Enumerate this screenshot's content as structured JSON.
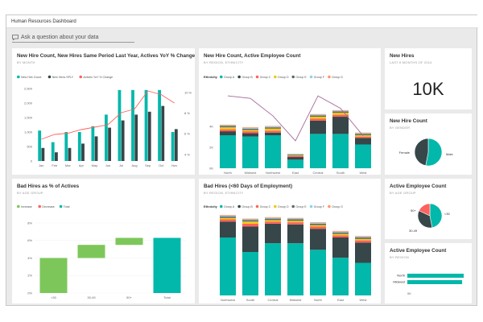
{
  "app": {
    "title": "Human Resources Dashboard"
  },
  "qa": {
    "placeholder": "Ask a question about your data"
  },
  "tiles": {
    "t1": {
      "title": "New Hire Count, New Hires Same Period Last Year, Actives YoY % Change",
      "subtitle": "BY MONTH"
    },
    "t2": {
      "title": "New Hire Count, Active Employee Count",
      "subtitle": "BY REGION, ETHNICITY"
    },
    "t3": {
      "title": "New Hires",
      "subtitle": "LAST 6 MONTHS OF 2014",
      "value": "10K"
    },
    "t4": {
      "title": "New Hire Count",
      "subtitle": "BY GENDER"
    },
    "t5": {
      "title": "Bad Hires as % of Actives",
      "subtitle": "BY AGE GROUP"
    },
    "t6": {
      "title": "Bad Hires (<60 Days of Employment)",
      "subtitle": "BY REGION, ETHNICITY"
    },
    "t7": {
      "title": "Active Employee Count",
      "subtitle": "BY AGE GROUP"
    },
    "t8": {
      "title": "Active Employee Count",
      "subtitle": "BY REGION"
    }
  },
  "colors": {
    "teal": "#01b8aa",
    "dark": "#374649",
    "red": "#fd625e",
    "yellow": "#f2c80f",
    "gray": "#5f6b6d",
    "blue": "#8ad4eb",
    "orange": "#fe9666",
    "purple": "#a66999",
    "green": "#7dc75a",
    "lightgray": "#e5e5e5"
  },
  "chart_data": [
    {
      "id": "t1",
      "type": "bar",
      "categories": [
        "Jan",
        "Feb",
        "Mar",
        "Apr",
        "May",
        "Jun",
        "Jul",
        "Aug",
        "Sep",
        "Oct",
        "Nov"
      ],
      "series": [
        {
          "name": "New Hire Count",
          "values": [
            1050,
            650,
            1000,
            1000,
            1200,
            1600,
            2450,
            2450,
            2450,
            2450,
            1000
          ]
        },
        {
          "name": "New Hires SPLY",
          "values": [
            450,
            300,
            450,
            600,
            850,
            1150,
            1400,
            1600,
            1700,
            1900,
            1100
          ]
        },
        {
          "name": "Actives YoY % Change",
          "values": [
            1.8,
            2.2,
            2.3,
            2.6,
            2.8,
            3.0,
            4.0,
            4.3,
            5.8,
            5.5,
            4.8
          ]
        }
      ],
      "ylim": [
        0,
        2500
      ],
      "yticks": [
        "0",
        "500",
        "1,000",
        "1,500",
        "2,000",
        "2,500"
      ],
      "y2lim": [
        0,
        6
      ],
      "y2ticks": [
        "4 %",
        "6 %",
        "8 %",
        "10 %"
      ]
    },
    {
      "id": "t2",
      "type": "bar",
      "legend_title": "Ethnicity",
      "categories": [
        "North",
        "Midwest",
        "Northwest",
        "East",
        "Central",
        "South",
        "West"
      ],
      "series": [
        {
          "name": "Group A",
          "values": [
            50,
            48,
            50,
            13,
            52,
            52,
            36
          ]
        },
        {
          "name": "Group B",
          "values": [
            6,
            5,
            4,
            4,
            20,
            26,
            10
          ]
        },
        {
          "name": "Group C",
          "values": [
            3,
            3,
            3,
            2,
            3,
            3,
            2
          ]
        },
        {
          "name": "Group D",
          "values": [
            3,
            2,
            3,
            1,
            3,
            3,
            2
          ]
        },
        {
          "name": "Group E",
          "values": [
            2,
            2,
            2,
            1,
            2,
            2,
            2
          ]
        },
        {
          "name": "Group F",
          "values": [
            1,
            1,
            1,
            1,
            1,
            1,
            1
          ]
        },
        {
          "name": "Group G",
          "values": [
            1,
            1,
            1,
            0,
            1,
            1,
            1
          ]
        }
      ],
      "line": {
        "name": "Active Employee Count",
        "values": [
          145,
          140,
          105,
          55,
          145,
          120,
          65
        ]
      },
      "yticks": [
        "0K",
        "2K",
        "4K"
      ]
    },
    {
      "id": "t4",
      "type": "pie",
      "labels": [
        "Female",
        "Male"
      ],
      "values": [
        47,
        53
      ]
    },
    {
      "id": "t5",
      "type": "bar",
      "categories": [
        "<30",
        "30-49",
        "50+",
        "Total"
      ],
      "legend": [
        "Increase",
        "Decrease",
        "Total"
      ],
      "steps": [
        4.0,
        1.5,
        0.8
      ],
      "total": 6.3,
      "ylim": [
        0,
        8
      ],
      "yticks": [
        "0%",
        "2%",
        "4%",
        "6%",
        "8%"
      ]
    },
    {
      "id": "t6",
      "type": "bar",
      "legend_title": "Ethnicity",
      "categories": [
        "Northwest",
        "South",
        "Central",
        "Midwest",
        "North",
        "East",
        "West"
      ],
      "series": [
        {
          "name": "Group A",
          "values": [
            80,
            60,
            72,
            72,
            63,
            52,
            45
          ]
        },
        {
          "name": "Group B",
          "values": [
            22,
            35,
            27,
            26,
            29,
            28,
            28
          ]
        },
        {
          "name": "Group C",
          "values": [
            3,
            4,
            3,
            3,
            3,
            3,
            3
          ]
        },
        {
          "name": "Group D",
          "values": [
            2,
            3,
            2,
            2,
            2,
            2,
            2
          ]
        },
        {
          "name": "Group E",
          "values": [
            2,
            2,
            2,
            2,
            2,
            2,
            2
          ]
        },
        {
          "name": "Group F",
          "values": [
            1,
            1,
            1,
            1,
            1,
            1,
            1
          ]
        },
        {
          "name": "Group G",
          "values": [
            1,
            1,
            1,
            1,
            1,
            1,
            1
          ]
        }
      ]
    },
    {
      "id": "t7",
      "type": "pie",
      "labels": [
        "<30",
        "30-49",
        "50+"
      ],
      "values": [
        47,
        35,
        18
      ]
    },
    {
      "id": "t8",
      "type": "bar",
      "orientation": "horizontal",
      "categories": [
        "North",
        "Midwest"
      ],
      "values": [
        72,
        70
      ],
      "ticks": [
        "0K",
        "10K"
      ]
    }
  ]
}
